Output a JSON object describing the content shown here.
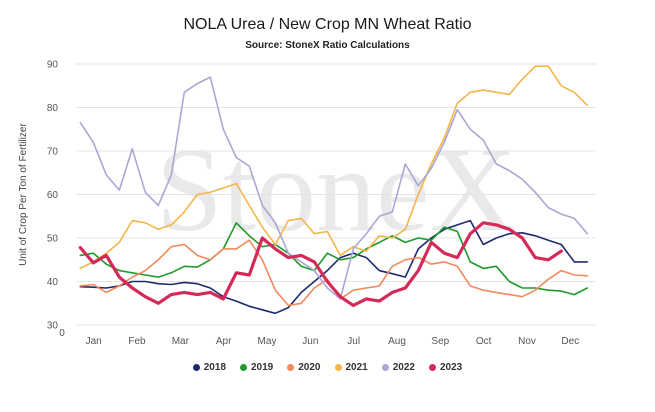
{
  "chart_data": {
    "type": "line",
    "title": "NOLA Urea / New Crop MN Wheat Ratio",
    "subtitle": "Source: StoneX Ratio Calculations",
    "ylabel": "Unit of Crop Per Ton of Fertilizer",
    "xlabel": "",
    "watermark": "StoneX",
    "ylim": [
      30,
      90
    ],
    "yticks": [
      30,
      40,
      50,
      60,
      70,
      80,
      90
    ],
    "xlim": [
      0,
      12
    ],
    "xticks": [
      {
        "x": 0,
        "label": "0"
      }
    ],
    "month_labels": [
      "Jan",
      "Feb",
      "Mar",
      "Apr",
      "May",
      "Jun",
      "Jul",
      "Aug",
      "Sep",
      "Oct",
      "Nov",
      "Dec"
    ],
    "grid": true,
    "legend_position": "bottom",
    "series": [
      {
        "name": "2018",
        "color": "#1f2a6e",
        "width": 1.6,
        "x": [
          0.1,
          0.4,
          0.7,
          1.0,
          1.3,
          1.6,
          1.9,
          2.2,
          2.5,
          2.8,
          3.1,
          3.4,
          3.7,
          4.0,
          4.3,
          4.6,
          4.9,
          5.2,
          5.5,
          5.8,
          6.1,
          6.4,
          6.7,
          7.0,
          7.3,
          7.6,
          7.9,
          8.2,
          8.5,
          8.8,
          9.1,
          9.4,
          9.7,
          10.0,
          10.3,
          10.6,
          10.9,
          11.2,
          11.5,
          11.8
        ],
        "y": [
          38.8,
          38.7,
          38.5,
          39.0,
          40.0,
          40.0,
          39.5,
          39.3,
          39.8,
          39.5,
          38.5,
          36.5,
          35.5,
          34.3,
          33.5,
          32.7,
          34.0,
          37.5,
          40.0,
          42.5,
          45.5,
          46.5,
          45.5,
          42.5,
          41.8,
          41.0,
          47.5,
          50.0,
          52.0,
          53.0,
          54.0,
          48.5,
          50.0,
          51.0,
          51.2,
          50.5,
          49.5,
          48.5,
          44.5,
          44.5
        ]
      },
      {
        "name": "2019",
        "color": "#1e9a2a",
        "width": 1.6,
        "x": [
          0.1,
          0.4,
          0.7,
          1.0,
          1.3,
          1.6,
          1.9,
          2.2,
          2.5,
          2.8,
          3.1,
          3.4,
          3.7,
          4.0,
          4.3,
          4.6,
          4.9,
          5.2,
          5.5,
          5.8,
          6.1,
          6.4,
          6.7,
          7.0,
          7.3,
          7.6,
          7.9,
          8.2,
          8.5,
          8.8,
          9.1,
          9.4,
          9.7,
          10.0,
          10.3,
          10.6,
          10.9,
          11.2,
          11.5,
          11.8
        ],
        "y": [
          46.0,
          46.5,
          44.0,
          42.5,
          42.0,
          41.5,
          41.0,
          42.0,
          43.5,
          43.3,
          45.0,
          47.5,
          53.5,
          50.5,
          48.0,
          48.5,
          46.5,
          43.5,
          42.5,
          46.5,
          45.0,
          45.5,
          47.5,
          49.0,
          50.5,
          49.0,
          50.0,
          49.5,
          52.5,
          51.5,
          44.5,
          43.0,
          43.5,
          40.0,
          38.5,
          38.5,
          38.0,
          37.8,
          37.0,
          38.5
        ]
      },
      {
        "name": "2020",
        "color": "#f08a5d",
        "width": 1.6,
        "x": [
          0.1,
          0.4,
          0.7,
          1.0,
          1.3,
          1.6,
          1.9,
          2.2,
          2.5,
          2.8,
          3.1,
          3.4,
          3.7,
          4.0,
          4.3,
          4.6,
          4.9,
          5.2,
          5.5,
          5.8,
          6.1,
          6.4,
          6.7,
          7.0,
          7.3,
          7.6,
          7.9,
          8.2,
          8.5,
          8.8,
          9.1,
          9.4,
          9.7,
          10.0,
          10.3,
          10.6,
          10.9,
          11.2,
          11.5,
          11.8
        ],
        "y": [
          39.0,
          39.3,
          37.5,
          39.0,
          41.0,
          42.5,
          45.0,
          48.0,
          48.5,
          46.0,
          45.0,
          47.5,
          47.5,
          49.5,
          45.0,
          38.0,
          34.5,
          35.0,
          38.5,
          40.5,
          36.0,
          38.0,
          38.5,
          39.0,
          43.5,
          45.0,
          45.5,
          44.0,
          44.5,
          43.5,
          39.0,
          38.0,
          37.5,
          37.0,
          36.5,
          38.0,
          40.5,
          42.5,
          41.5,
          41.3
        ]
      },
      {
        "name": "2021",
        "color": "#f4b54a",
        "width": 1.6,
        "x": [
          0.1,
          0.4,
          0.7,
          1.0,
          1.3,
          1.6,
          1.9,
          2.2,
          2.5,
          2.8,
          3.1,
          3.4,
          3.7,
          4.0,
          4.3,
          4.6,
          4.9,
          5.2,
          5.5,
          5.8,
          6.1,
          6.4,
          6.7,
          7.0,
          7.3,
          7.6,
          7.9,
          8.2,
          8.5,
          8.8,
          9.1,
          9.4,
          9.7,
          10.0,
          10.3,
          10.6,
          10.9,
          11.2,
          11.5,
          11.8
        ],
        "y": [
          43.0,
          44.5,
          46.5,
          49.0,
          54.0,
          53.5,
          52.0,
          53.0,
          56.0,
          60.0,
          60.5,
          61.5,
          62.5,
          57.5,
          52.5,
          48.5,
          54.0,
          54.5,
          51.0,
          51.5,
          46.0,
          48.0,
          47.0,
          50.5,
          50.0,
          52.0,
          60.0,
          67.0,
          73.0,
          81.0,
          83.5,
          84.0,
          83.5,
          83.0,
          86.5,
          89.5,
          89.5,
          85.0,
          83.5,
          80.5
        ]
      },
      {
        "name": "2022",
        "color": "#a9a8d4",
        "width": 1.6,
        "x": [
          0.1,
          0.4,
          0.7,
          1.0,
          1.3,
          1.6,
          1.9,
          2.2,
          2.5,
          2.8,
          3.1,
          3.4,
          3.7,
          4.0,
          4.3,
          4.6,
          4.9,
          5.2,
          5.5,
          5.8,
          6.1,
          6.4,
          6.7,
          7.0,
          7.3,
          7.6,
          7.9,
          8.2,
          8.5,
          8.8,
          9.1,
          9.4,
          9.7,
          10.0,
          10.3,
          10.6,
          10.9,
          11.2,
          11.5,
          11.8
        ],
        "y": [
          76.5,
          72.0,
          64.5,
          61.0,
          70.5,
          60.5,
          57.5,
          64.5,
          83.5,
          85.5,
          87.0,
          75.0,
          68.5,
          66.5,
          57.5,
          53.5,
          46.5,
          44.5,
          42.5,
          38.5,
          36.0,
          47.5,
          51.0,
          55.0,
          56.0,
          67.0,
          62.0,
          66.0,
          72.0,
          79.5,
          75.0,
          72.5,
          67.0,
          65.5,
          63.5,
          60.5,
          57.0,
          55.5,
          54.5,
          51.0
        ]
      },
      {
        "name": "2023",
        "color": "#d42a5a",
        "width": 3.2,
        "x": [
          0.1,
          0.4,
          0.7,
          1.0,
          1.3,
          1.6,
          1.9,
          2.2,
          2.5,
          2.8,
          3.1,
          3.4,
          3.7,
          4.0,
          4.3,
          4.6,
          4.9,
          5.2,
          5.5,
          5.8,
          6.1,
          6.4,
          6.7,
          7.0,
          7.3,
          7.6,
          7.9,
          8.2,
          8.5,
          8.8,
          9.1,
          9.4,
          9.7,
          10.0,
          10.3,
          10.6,
          10.9,
          11.2
        ],
        "y": [
          47.8,
          44.3,
          46.0,
          41.0,
          38.5,
          36.5,
          35.0,
          37.0,
          37.5,
          37.0,
          37.5,
          36.0,
          42.0,
          41.5,
          50.0,
          47.5,
          45.5,
          46.0,
          44.5,
          40.0,
          36.5,
          34.5,
          36.0,
          35.5,
          37.5,
          38.5,
          42.5,
          49.0,
          46.5,
          45.5,
          51.0,
          53.5,
          53.0,
          52.0,
          50.0,
          45.5,
          45.0,
          47.0
        ]
      }
    ]
  }
}
